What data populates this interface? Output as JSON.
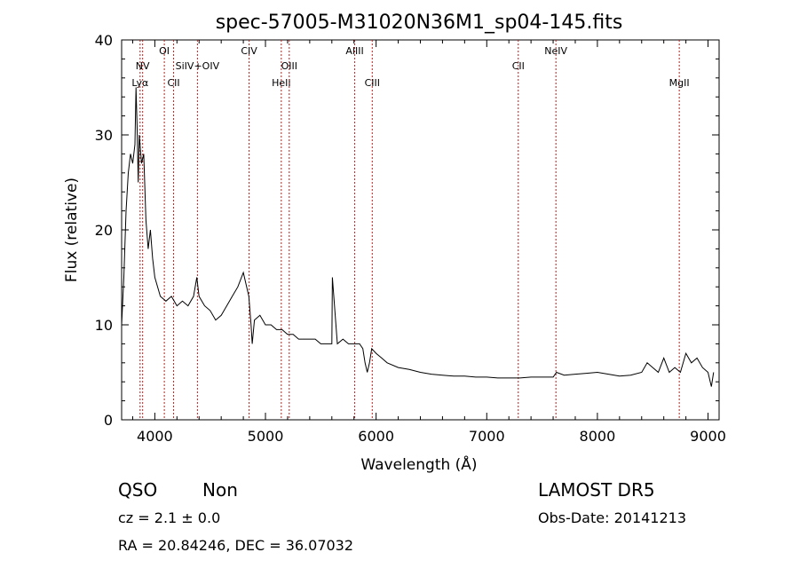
{
  "chart_data": {
    "type": "line",
    "title": "spec-57005-M31020N36M1_sp04-145.fits",
    "xlabel": "Wavelength (Å)",
    "ylabel": "Flux (relative)",
    "xlim": [
      3700,
      9100
    ],
    "ylim": [
      0,
      40
    ],
    "xticks": [
      4000,
      5000,
      6000,
      7000,
      8000,
      9000
    ],
    "yticks": [
      0,
      10,
      20,
      30,
      40
    ],
    "xtick_labels": [
      "4000",
      "5000",
      "6000",
      "7000",
      "8000",
      "9000"
    ],
    "ytick_labels": [
      "0",
      "10",
      "20",
      "30",
      "40"
    ],
    "grid": false,
    "line_color": "#000000",
    "marker_color": "#b22222",
    "emission_lines": [
      {
        "label": "Lyα",
        "x": 3867,
        "row": 3
      },
      {
        "label": "NV",
        "x": 3890,
        "row": 2
      },
      {
        "label": "OI",
        "x": 4086,
        "row": 1
      },
      {
        "label": "CII",
        "x": 4170,
        "row": 3
      },
      {
        "label": "SiIV+OIV",
        "x": 4385,
        "row": 2
      },
      {
        "label": "CIV",
        "x": 4852,
        "row": 1
      },
      {
        "label": "HeII",
        "x": 5143,
        "row": 3
      },
      {
        "label": "OIII",
        "x": 5215,
        "row": 2
      },
      {
        "label": "AlIII",
        "x": 5807,
        "row": 1
      },
      {
        "label": "CIII",
        "x": 5965,
        "row": 3
      },
      {
        "label": "CII",
        "x": 7285,
        "row": 2
      },
      {
        "label": "NeIV",
        "x": 7625,
        "row": 1
      },
      {
        "label": "MgII",
        "x": 8740,
        "row": 3
      }
    ],
    "spectrum": {
      "x": [
        3700,
        3720,
        3740,
        3760,
        3780,
        3800,
        3820,
        3830,
        3840,
        3850,
        3860,
        3880,
        3900,
        3920,
        3940,
        3960,
        3980,
        4000,
        4050,
        4100,
        4150,
        4200,
        4250,
        4300,
        4350,
        4380,
        4400,
        4450,
        4500,
        4550,
        4600,
        4650,
        4700,
        4750,
        4800,
        4850,
        4870,
        4880,
        4900,
        4950,
        5000,
        5050,
        5100,
        5150,
        5200,
        5250,
        5300,
        5350,
        5400,
        5450,
        5500,
        5550,
        5600,
        5605,
        5650,
        5700,
        5750,
        5800,
        5850,
        5880,
        5900,
        5920,
        5940,
        5960,
        6000,
        6050,
        6100,
        6200,
        6300,
        6400,
        6500,
        6600,
        6700,
        6800,
        6900,
        7000,
        7100,
        7200,
        7300,
        7400,
        7500,
        7600,
        7630,
        7700,
        7800,
        7900,
        8000,
        8100,
        8200,
        8300,
        8400,
        8450,
        8500,
        8550,
        8600,
        8650,
        8700,
        8750,
        8800,
        8850,
        8900,
        8950,
        9000,
        9030,
        9050
      ],
      "y": [
        10,
        15,
        22,
        26,
        28,
        27,
        29,
        35,
        31,
        25,
        30,
        27,
        28,
        21,
        18,
        20,
        17,
        15,
        13,
        12.5,
        13,
        12,
        12.5,
        12,
        13,
        15,
        13,
        12,
        11.5,
        10.5,
        11,
        12,
        13,
        14,
        15.5,
        13,
        10,
        8,
        10.5,
        11,
        10,
        10,
        9.5,
        9.5,
        9,
        9,
        8.5,
        8.5,
        8.5,
        8.5,
        8,
        8,
        8,
        15,
        8,
        8.5,
        8,
        8,
        8,
        7.5,
        6,
        5,
        6,
        7.5,
        7,
        6.5,
        6,
        5.5,
        5.3,
        5,
        4.8,
        4.7,
        4.6,
        4.6,
        4.5,
        4.5,
        4.4,
        4.4,
        4.4,
        4.5,
        4.5,
        4.5,
        5,
        4.7,
        4.8,
        4.9,
        5,
        4.8,
        4.6,
        4.7,
        5,
        6,
        5.5,
        5,
        6.5,
        5,
        5.5,
        5,
        7,
        6,
        6.5,
        5.5,
        5,
        3.5,
        5
      ]
    }
  },
  "info": {
    "class": "QSO",
    "subclass": "Non",
    "survey": "LAMOST DR5",
    "redshift": "cz = 2.1 ± 0.0",
    "obs_date": "Obs-Date: 20141213",
    "coords": "RA =  20.84246, DEC =  36.07032"
  }
}
